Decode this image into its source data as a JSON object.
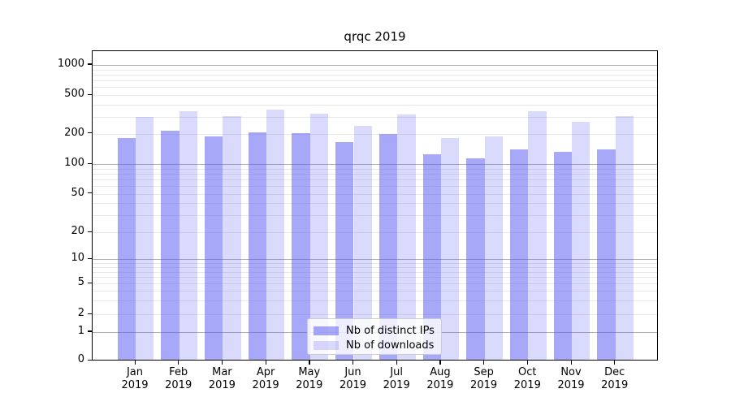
{
  "figure": {
    "background": "#ffffff"
  },
  "chart_data": {
    "type": "bar",
    "title": "qrqc 2019",
    "categories": [
      "Jan",
      "Feb",
      "Mar",
      "Apr",
      "May",
      "Jun",
      "Jul",
      "Aug",
      "Sep",
      "Oct",
      "Nov",
      "Dec"
    ],
    "category_year": "2019",
    "series": [
      {
        "name": "Nb of distinct IPs",
        "color": "rgba(82,82,242,0.5)",
        "values": [
          175,
          205,
          180,
          200,
          195,
          160,
          190,
          120,
          110,
          135,
          128,
          135
        ]
      },
      {
        "name": "Nb of downloads",
        "color": "rgba(82,82,242,0.21)",
        "values": [
          285,
          330,
          290,
          340,
          310,
          230,
          305,
          175,
          180,
          325,
          255,
          290
        ]
      }
    ],
    "y_axis": {
      "scale": "symlog",
      "tick_values": [
        0,
        1,
        2,
        5,
        10,
        20,
        50,
        100,
        200,
        500,
        1000
      ],
      "major_grid_values": [
        1,
        10,
        100,
        1000
      ],
      "minor_grid_values": [
        2,
        3,
        4,
        5,
        6,
        7,
        8,
        9,
        20,
        30,
        40,
        60,
        70,
        80,
        90,
        200,
        300,
        400,
        600,
        700,
        800,
        900,
        50,
        500
      ],
      "anchors": [
        [
          0,
          0.002
        ],
        [
          1,
          0.095
        ],
        [
          2,
          0.1518
        ],
        [
          5,
          0.2505
        ],
        [
          10,
          0.3291
        ],
        [
          20,
          0.4154
        ],
        [
          50,
          0.5401
        ],
        [
          100,
          0.6353
        ],
        [
          200,
          0.7338
        ],
        [
          500,
          0.8586
        ],
        [
          1000,
          0.9555
        ]
      ],
      "ylim": [
        0,
        1380
      ]
    },
    "grid": true,
    "legend": {
      "position": "lower-center"
    }
  },
  "colors": {
    "spine": "#000000",
    "major_grid": "#b0b0b0",
    "minor_grid": "#e8e8e8",
    "legend_border": "#cccccc"
  }
}
